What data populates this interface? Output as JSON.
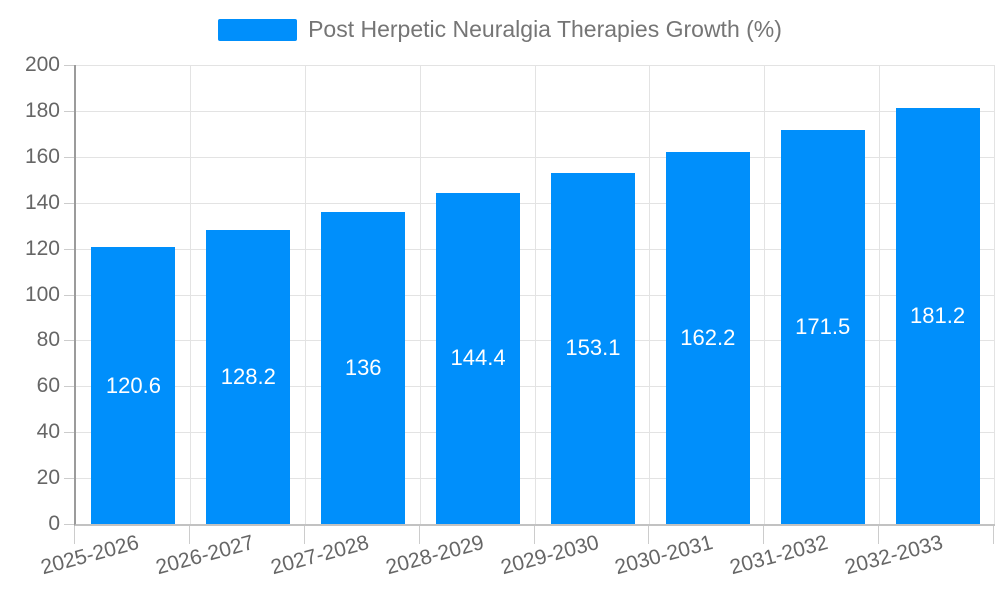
{
  "chart_data": {
    "type": "bar",
    "title": "Post Herpetic Neuralgia Therapies Growth (%)",
    "categories": [
      "2025-2026",
      "2026-2027",
      "2027-2028",
      "2028-2029",
      "2029-2030",
      "2030-2031",
      "2031-2032",
      "2032-2033"
    ],
    "values": [
      120.6,
      128.2,
      136,
      144.4,
      153.1,
      162.2,
      171.5,
      181.2
    ],
    "value_labels": [
      "120.6",
      "128.2",
      "136",
      "144.4",
      "153.1",
      "162.2",
      "171.5",
      "181.2"
    ],
    "xlabel": "",
    "ylabel": "",
    "ylim": [
      0,
      200
    ],
    "ytick_step": 20,
    "ytick_labels": [
      "0",
      "20",
      "40",
      "60",
      "80",
      "100",
      "120",
      "140",
      "160",
      "180",
      "200"
    ],
    "grid": true,
    "legend_position": "top-center",
    "x_label_rotation_deg": -15,
    "colors": {
      "bar": "#008FFB",
      "data_label": "#ffffff",
      "axis_label": "#666666",
      "legend_text": "#757575",
      "grid_line": "#e3e3e3",
      "y_axis_line": "#9b9b9b",
      "x_axis_line": "#c2c2c2",
      "tick": "#cccccc"
    }
  }
}
